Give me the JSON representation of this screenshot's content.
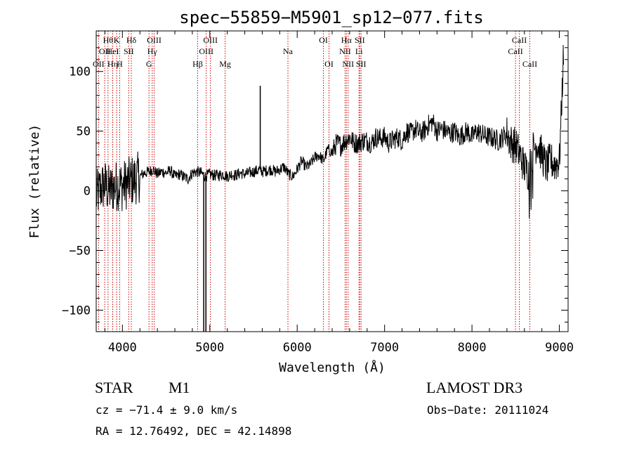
{
  "chart_data": {
    "type": "line",
    "title": "spec−55859−M5901_sp12−077.fits",
    "xlabel": "Wavelength (Å)",
    "ylabel": "Flux (relative)",
    "xlim": [
      3700,
      9100
    ],
    "ylim": [
      -118,
      134
    ],
    "x_ticks": [
      4000,
      5000,
      6000,
      7000,
      8000,
      9000
    ],
    "x_tick_labels": [
      "4000",
      "5000",
      "6000",
      "7000",
      "8000",
      "9000"
    ],
    "y_ticks": [
      -100,
      -50,
      0,
      50,
      100
    ],
    "y_tick_labels": [
      "−100",
      "−50",
      "0",
      "50",
      "100"
    ],
    "grid": false,
    "series": [
      {
        "name": "flux",
        "x": [
          3700,
          3750,
          3800,
          3850,
          3900,
          3950,
          4000,
          4050,
          4100,
          4150,
          4200,
          4250,
          4300,
          4350,
          4400,
          4450,
          4500,
          4550,
          4600,
          4650,
          4700,
          4750,
          4800,
          4850,
          4900,
          4950,
          5000,
          5050,
          5100,
          5150,
          5200,
          5250,
          5300,
          5350,
          5400,
          5450,
          5500,
          5550,
          5580,
          5600,
          5650,
          5700,
          5750,
          5800,
          5850,
          5900,
          5950,
          6000,
          6050,
          6100,
          6150,
          6200,
          6250,
          6300,
          6350,
          6400,
          6450,
          6500,
          6550,
          6600,
          6650,
          6700,
          6750,
          6800,
          6850,
          6900,
          6950,
          7000,
          7050,
          7100,
          7150,
          7200,
          7250,
          7300,
          7350,
          7400,
          7450,
          7500,
          7550,
          7600,
          7650,
          7700,
          7750,
          7800,
          7850,
          7900,
          7950,
          8000,
          8050,
          8100,
          8150,
          8200,
          8250,
          8300,
          8350,
          8400,
          8450,
          8500,
          8550,
          8600,
          8650,
          8700,
          8750,
          8800,
          8850,
          8900,
          8950,
          9000,
          9020,
          9050
        ],
        "y": [
          -5,
          2,
          5,
          0,
          3,
          5,
          4,
          6,
          8,
          10,
          12,
          15,
          16,
          18,
          14,
          16,
          15,
          17,
          12,
          14,
          12,
          10,
          15,
          16,
          15,
          12,
          14,
          13,
          13,
          14,
          12,
          14,
          13,
          15,
          14,
          15,
          16,
          17,
          18,
          16,
          17,
          18,
          16,
          18,
          20,
          14,
          12,
          18,
          25,
          20,
          22,
          28,
          30,
          25,
          35,
          32,
          40,
          38,
          42,
          45,
          40,
          40,
          42,
          42,
          40,
          45,
          44,
          45,
          40,
          43,
          45,
          42,
          50,
          48,
          52,
          48,
          50,
          55,
          58,
          50,
          52,
          50,
          48,
          50,
          45,
          48,
          50,
          45,
          50,
          48,
          46,
          45,
          44,
          42,
          45,
          48,
          40,
          38,
          30,
          20,
          15,
          35,
          40,
          30,
          20,
          25,
          22,
          25,
          60,
          120
        ]
      }
    ],
    "spikes": [
      {
        "x": 5577,
        "y": 88
      },
      {
        "x": 4930,
        "y": -118
      },
      {
        "x": 4955,
        "y": -118
      }
    ],
    "line_markers": [
      {
        "x": 3727,
        "label": "OII",
        "row": 3
      },
      {
        "x": 3798,
        "label": "OII",
        "row": 2
      },
      {
        "x": 3835,
        "label": "Hθ",
        "row": 1
      },
      {
        "x": 3889,
        "label": "HeI",
        "row": 2
      },
      {
        "x": 3889,
        "label": "Hη",
        "row": 3
      },
      {
        "x": 3934,
        "label": "K",
        "row": 1
      },
      {
        "x": 3969,
        "label": "H",
        "row": 3
      },
      {
        "x": 4072,
        "label": "SII",
        "row": 2
      },
      {
        "x": 4102,
        "label": "Hδ",
        "row": 1
      },
      {
        "x": 4304,
        "label": "G",
        "row": 3
      },
      {
        "x": 4341,
        "label": "Hγ",
        "row": 2
      },
      {
        "x": 4363,
        "label": "OIII",
        "row": 1
      },
      {
        "x": 4861,
        "label": "Hβ",
        "row": 3
      },
      {
        "x": 4959,
        "label": "OIII",
        "row": 2
      },
      {
        "x": 5007,
        "label": "OIII",
        "row": 1
      },
      {
        "x": 5175,
        "label": "Mg",
        "row": 3
      },
      {
        "x": 5894,
        "label": "Na",
        "row": 2
      },
      {
        "x": 6300,
        "label": "OI",
        "row": 1
      },
      {
        "x": 6364,
        "label": "OI",
        "row": 3
      },
      {
        "x": 6548,
        "label": "NII",
        "row": 2
      },
      {
        "x": 6563,
        "label": "Hα",
        "row": 1
      },
      {
        "x": 6583,
        "label": "NII",
        "row": 3
      },
      {
        "x": 6707,
        "label": "Li",
        "row": 2
      },
      {
        "x": 6716,
        "label": "SII",
        "row": 1
      },
      {
        "x": 6731,
        "label": "SII",
        "row": 3
      },
      {
        "x": 8498,
        "label": "CaII",
        "row": 2
      },
      {
        "x": 8542,
        "label": "CaII",
        "row": 1
      },
      {
        "x": 8662,
        "label": "CaII",
        "row": 3
      }
    ]
  },
  "info": {
    "object_class": "STAR",
    "subclass": "M1",
    "survey": "LAMOST DR3",
    "redshift_line": "cz = −71.4 ± 9.0 km/s",
    "obs_date": "Obs−Date: 20111024",
    "coordinates": "RA =  12.76492, DEC =  42.14898"
  },
  "colors": {
    "line_marker": "#cc0000",
    "spectrum": "#000000"
  }
}
